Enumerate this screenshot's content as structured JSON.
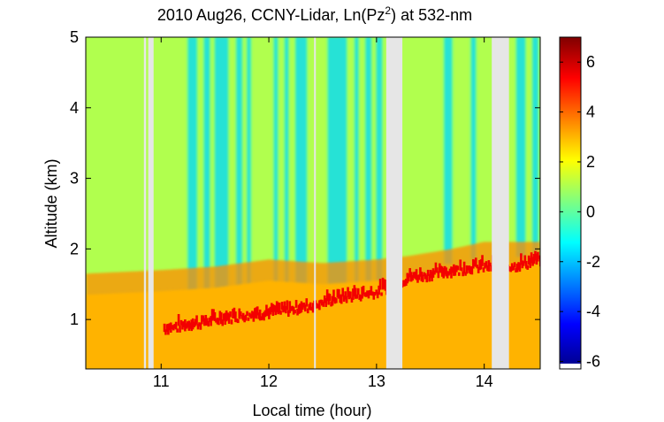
{
  "chart_data": {
    "type": "heatmap",
    "title": "2010 Aug26, CCNY-Lidar, Ln(Pz",
    "title_sup": "2",
    "title_tail": ") at 532-nm",
    "xlabel": "Local time (hour)",
    "ylabel": "Altitude (km)",
    "xlim": [
      10.3,
      14.52
    ],
    "ylim": [
      0.3,
      5.0
    ],
    "xticks": [
      "11",
      "12",
      "13",
      "14"
    ],
    "xtick_values": [
      11,
      12,
      13,
      14
    ],
    "yticks": [
      "1",
      "2",
      "3",
      "4",
      "5"
    ],
    "ytick_values": [
      1,
      2,
      3,
      4,
      5
    ],
    "colorbar": {
      "colormap": "jet",
      "range": [
        -6.3,
        7.0
      ],
      "ticks": [
        "6",
        "4",
        "2",
        "0",
        "-2",
        "-4",
        "-6"
      ],
      "tick_values": [
        6,
        4,
        2,
        0,
        -2,
        -4,
        -6
      ]
    },
    "no_data_color": "#e6e6e6",
    "data_gaps_hours": [
      [
        10.84,
        10.86
      ],
      [
        10.88,
        10.93
      ],
      [
        12.42,
        12.43
      ],
      [
        13.09,
        13.24
      ],
      [
        14.07,
        14.23
      ]
    ],
    "data_start_low_altitude": {
      "hour": 11.02,
      "min_alt_km": 0.8
    },
    "aerosol_layer_top_km": [
      [
        10.3,
        1.65
      ],
      [
        11.0,
        1.7
      ],
      [
        11.5,
        1.75
      ],
      [
        12.0,
        1.85
      ],
      [
        12.5,
        1.8
      ],
      [
        13.0,
        1.85
      ],
      [
        13.3,
        1.9
      ],
      [
        13.7,
        2.0
      ],
      [
        14.0,
        2.1
      ],
      [
        14.5,
        2.1
      ]
    ],
    "cloud_base_km": [
      [
        11.0,
        0.82
      ],
      [
        11.2,
        0.87
      ],
      [
        11.4,
        0.92
      ],
      [
        11.6,
        0.98
      ],
      [
        11.8,
        1.02
      ],
      [
        12.0,
        1.05
      ],
      [
        12.2,
        1.1
      ],
      [
        12.4,
        1.15
      ],
      [
        12.6,
        1.25
      ],
      [
        12.8,
        1.3
      ],
      [
        13.0,
        1.35
      ],
      [
        13.3,
        1.55
      ],
      [
        13.6,
        1.62
      ],
      [
        13.9,
        1.7
      ],
      [
        14.0,
        1.7
      ],
      [
        14.3,
        1.72
      ],
      [
        14.5,
        1.8
      ]
    ],
    "cloud_value": 5.5,
    "clear_sky_value": 1.0,
    "boundary_layer_value": 3.0,
    "attenuated_value": -2.0,
    "attenuation_streaks_hours": [
      [
        11.25,
        11.33
      ],
      [
        11.4,
        11.45
      ],
      [
        11.5,
        11.62
      ],
      [
        11.7,
        11.75
      ],
      [
        11.8,
        11.83
      ],
      [
        12.05,
        12.08
      ],
      [
        12.15,
        12.18
      ],
      [
        12.25,
        12.35
      ],
      [
        12.55,
        12.72
      ],
      [
        12.8,
        12.83
      ],
      [
        12.9,
        12.95
      ],
      [
        13.0,
        13.05
      ],
      [
        13.63,
        13.7
      ],
      [
        13.88,
        13.92
      ],
      [
        14.3,
        14.38
      ],
      [
        14.45,
        14.5
      ]
    ]
  }
}
